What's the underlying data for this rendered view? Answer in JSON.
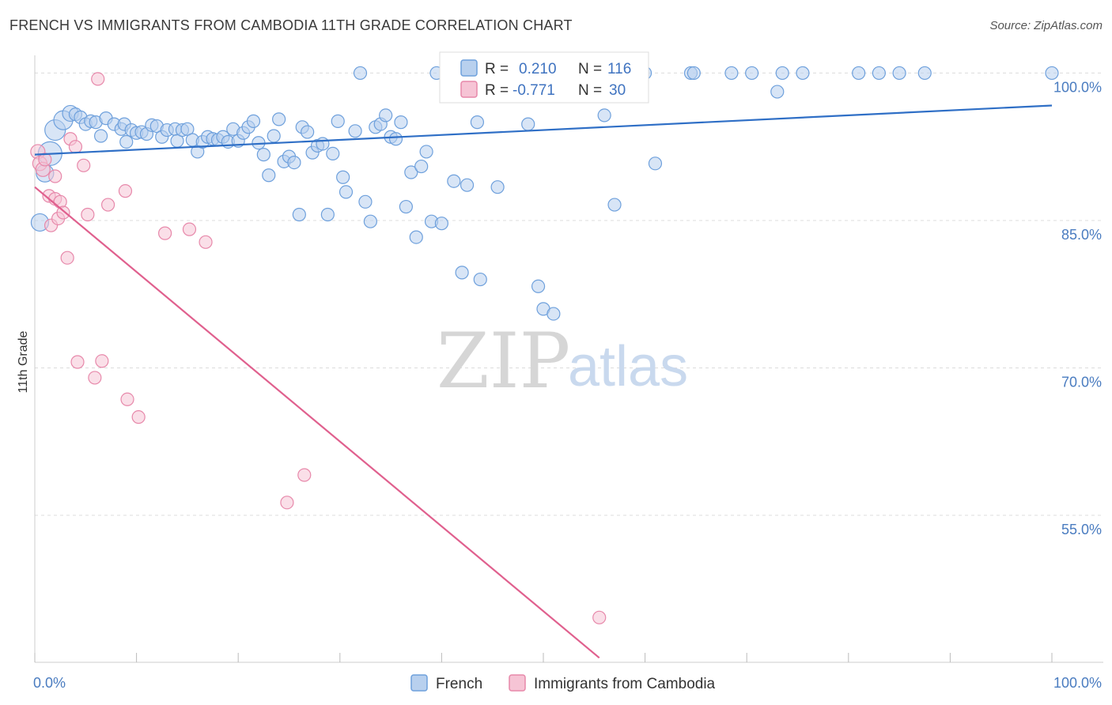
{
  "title": "FRENCH VS IMMIGRANTS FROM CAMBODIA 11TH GRADE CORRELATION CHART",
  "source": "Source: ZipAtlas.com",
  "colors": {
    "blue": "#6ea0dc",
    "blue_fill": "#b8d0ee",
    "blue_line": "#2f6fc6",
    "pink": "#e788aa",
    "pink_fill": "#f6c4d5",
    "pink_line": "#e0608e",
    "axis_label": "#4a7cc0",
    "grid": "#dcdcdc"
  },
  "legend": {
    "r_label": "R =",
    "n_label": "N =",
    "series1": {
      "r": "0.210",
      "n": "116"
    },
    "series2": {
      "r": "-0.771",
      "n": "30"
    }
  },
  "watermark": {
    "zip": "ZIP",
    "atlas": "atlas"
  },
  "chart_data": {
    "type": "scatter",
    "title": "FRENCH VS IMMIGRANTS FROM CAMBODIA 11TH GRADE CORRELATION CHART",
    "xlabel": "",
    "ylabel": "11th Grade",
    "xlim": [
      0,
      100
    ],
    "ylim": [
      40.5,
      102
    ],
    "x_ticks": [
      "0.0%",
      "100.0%"
    ],
    "y_ticks": [
      {
        "value": 100,
        "label": "100.0%"
      },
      {
        "value": 85,
        "label": "85.0%"
      },
      {
        "value": 70,
        "label": "70.0%"
      },
      {
        "value": 55,
        "label": "55.0%"
      }
    ],
    "grid": true,
    "legend_position": "top-center",
    "series": [
      {
        "name": "French",
        "color": "#6ea0dc",
        "trend": {
          "x": [
            0,
            100
          ],
          "y": [
            91.7,
            96.7
          ]
        },
        "points": [
          [
            0.5,
            84.8,
            22
          ],
          [
            1.5,
            91.8,
            30
          ],
          [
            1,
            89.8,
            22
          ],
          [
            2,
            94.2,
            26
          ],
          [
            2.8,
            95.2,
            24
          ],
          [
            3.5,
            95.9,
            20
          ],
          [
            4,
            95.8,
            16
          ],
          [
            4.5,
            95.5,
            16
          ],
          [
            5,
            94.8,
            16
          ],
          [
            5.5,
            95.1,
            16
          ],
          [
            6,
            95.0,
            16
          ],
          [
            6.5,
            93.6,
            16
          ],
          [
            7,
            95.4,
            16
          ],
          [
            7.8,
            94.8,
            16
          ],
          [
            8.5,
            94.3,
            16
          ],
          [
            8.8,
            94.8,
            16
          ],
          [
            9,
            93.0,
            16
          ],
          [
            9.5,
            94.2,
            16
          ],
          [
            10,
            93.9,
            16
          ],
          [
            10.5,
            94.0,
            16
          ],
          [
            11,
            93.8,
            16
          ],
          [
            11.5,
            94.7,
            16
          ],
          [
            12,
            94.6,
            16
          ],
          [
            12.5,
            93.5,
            16
          ],
          [
            13,
            94.2,
            16
          ],
          [
            13.8,
            94.3,
            16
          ],
          [
            14,
            93.1,
            16
          ],
          [
            14.5,
            94.2,
            16
          ],
          [
            15,
            94.3,
            16
          ],
          [
            15.5,
            93.2,
            16
          ],
          [
            16,
            92.0,
            16
          ],
          [
            16.5,
            93.0,
            16
          ],
          [
            17,
            93.5,
            16
          ],
          [
            17.5,
            93.3,
            16
          ],
          [
            18,
            93.2,
            16
          ],
          [
            18.5,
            93.5,
            16
          ],
          [
            19,
            93.0,
            16
          ],
          [
            19.5,
            94.3,
            16
          ],
          [
            20,
            93.1,
            16
          ],
          [
            20.5,
            93.9,
            16
          ],
          [
            21,
            94.5,
            16
          ],
          [
            21.5,
            95.1,
            16
          ],
          [
            22,
            92.9,
            16
          ],
          [
            22.5,
            91.7,
            16
          ],
          [
            23,
            89.6,
            16
          ],
          [
            23.5,
            93.6,
            16
          ],
          [
            24,
            95.3,
            16
          ],
          [
            24.5,
            91.0,
            16
          ],
          [
            25,
            91.5,
            16
          ],
          [
            25.5,
            90.9,
            16
          ],
          [
            26,
            85.6,
            16
          ],
          [
            26.3,
            94.5,
            16
          ],
          [
            26.8,
            94.0,
            16
          ],
          [
            27.3,
            91.9,
            16
          ],
          [
            27.8,
            92.6,
            16
          ],
          [
            28.3,
            92.8,
            16
          ],
          [
            28.8,
            85.6,
            16
          ],
          [
            29.3,
            91.8,
            16
          ],
          [
            29.8,
            95.1,
            16
          ],
          [
            30.3,
            89.4,
            16
          ],
          [
            30.6,
            87.9,
            16
          ],
          [
            31.5,
            94.1,
            16
          ],
          [
            32,
            100.0,
            16
          ],
          [
            32.5,
            86.9,
            16
          ],
          [
            33,
            84.9,
            16
          ],
          [
            33.5,
            94.5,
            16
          ],
          [
            34,
            94.8,
            16
          ],
          [
            34.5,
            95.7,
            16
          ],
          [
            35,
            93.5,
            16
          ],
          [
            35.5,
            93.3,
            16
          ],
          [
            36,
            95.0,
            16
          ],
          [
            36.5,
            86.4,
            16
          ],
          [
            37,
            89.9,
            16
          ],
          [
            37.5,
            83.3,
            16
          ],
          [
            38,
            90.5,
            16
          ],
          [
            38.5,
            92.0,
            16
          ],
          [
            39,
            84.9,
            16
          ],
          [
            40,
            84.7,
            16
          ],
          [
            39.5,
            100.0,
            16
          ],
          [
            41.5,
            100.0,
            16
          ],
          [
            41.2,
            89.0,
            16
          ],
          [
            42,
            79.7,
            16
          ],
          [
            42.5,
            88.6,
            16
          ],
          [
            43.5,
            95.0,
            16
          ],
          [
            43.8,
            79.0,
            16
          ],
          [
            44,
            100.0,
            16
          ],
          [
            45.5,
            88.4,
            16
          ],
          [
            47,
            100.0,
            16
          ],
          [
            48,
            100.0,
            16
          ],
          [
            48.5,
            94.8,
            16
          ],
          [
            49.5,
            78.3,
            16
          ],
          [
            50,
            76.0,
            16
          ],
          [
            51,
            75.5,
            16
          ],
          [
            53,
            100.0,
            16
          ],
          [
            55,
            100.0,
            16
          ],
          [
            56,
            95.7,
            16
          ],
          [
            57,
            86.6,
            16
          ],
          [
            60,
            100.0,
            16
          ],
          [
            61,
            90.8,
            16
          ],
          [
            64.5,
            100.0,
            16
          ],
          [
            64.8,
            100.0,
            16
          ],
          [
            68.5,
            100.0,
            16
          ],
          [
            70.5,
            100.0,
            16
          ],
          [
            73,
            98.1,
            16
          ],
          [
            73.5,
            100.0,
            16
          ],
          [
            75.5,
            100.0,
            16
          ],
          [
            81,
            100.0,
            16
          ],
          [
            83,
            100.0,
            16
          ],
          [
            85,
            100.0,
            16
          ],
          [
            87.5,
            100.0,
            16
          ],
          [
            100,
            100.0,
            16
          ]
        ]
      },
      {
        "name": "Immigrants from Cambodia",
        "color": "#e788aa",
        "trend": {
          "x": [
            0,
            55.5
          ],
          "y": [
            88.4,
            40.5
          ]
        },
        "points": [
          [
            0.3,
            92.0,
            18
          ],
          [
            0.5,
            90.8,
            18
          ],
          [
            0.8,
            90.2,
            18
          ],
          [
            1,
            91.2,
            16
          ],
          [
            1.4,
            87.5,
            16
          ],
          [
            1.6,
            84.5,
            16
          ],
          [
            2,
            89.5,
            16
          ],
          [
            2,
            87.2,
            16
          ],
          [
            2.3,
            85.2,
            16
          ],
          [
            2.5,
            86.9,
            16
          ],
          [
            2.8,
            85.8,
            16
          ],
          [
            3.2,
            81.2,
            16
          ],
          [
            3.5,
            93.3,
            16
          ],
          [
            4,
            92.5,
            16
          ],
          [
            4.2,
            70.6,
            16
          ],
          [
            4.8,
            90.6,
            16
          ],
          [
            5.2,
            85.6,
            16
          ],
          [
            5.9,
            69.0,
            16
          ],
          [
            6.2,
            99.4,
            16
          ],
          [
            6.6,
            70.7,
            16
          ],
          [
            7.2,
            86.6,
            16
          ],
          [
            8.9,
            88.0,
            16
          ],
          [
            9.1,
            66.8,
            16
          ],
          [
            10.2,
            65.0,
            16
          ],
          [
            12.8,
            83.7,
            16
          ],
          [
            15.2,
            84.1,
            16
          ],
          [
            16.8,
            82.8,
            16
          ],
          [
            24.8,
            56.3,
            16
          ],
          [
            26.5,
            59.1,
            16
          ],
          [
            55.5,
            44.6,
            16
          ]
        ]
      }
    ]
  }
}
